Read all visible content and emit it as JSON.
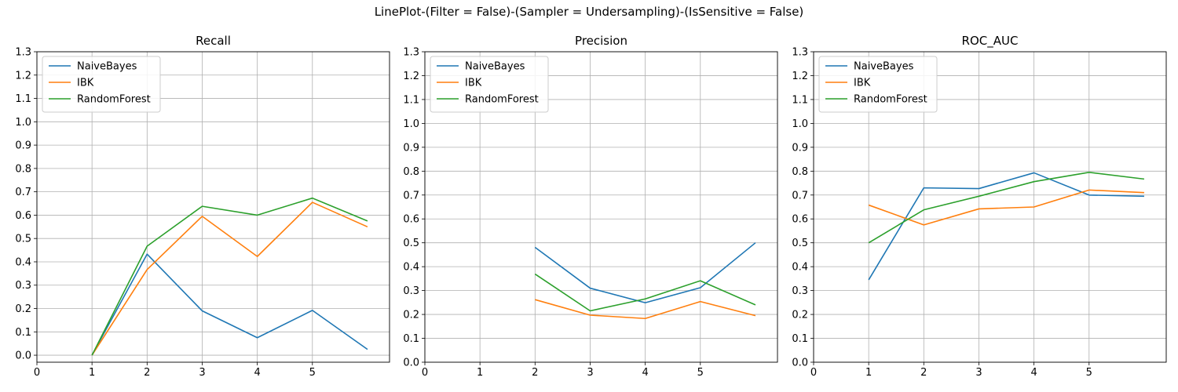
{
  "suptitle": "LinePlot-(Filter = False)-(Sampler = Undersampling)-(IsSensitive = False)",
  "colors": {
    "NaiveBayes": "#1f77b4",
    "IBK": "#ff7f0e",
    "RandomForest": "#2ca02c",
    "grid": "#b0b0b0"
  },
  "chart_data": [
    {
      "type": "line",
      "title": "Recall",
      "xlim": [
        0,
        6.4
      ],
      "ylim": [
        -0.03,
        1.3
      ],
      "xticks": [
        0,
        1,
        2,
        3,
        4,
        5
      ],
      "yticks": [
        0.0,
        0.1,
        0.2,
        0.3,
        0.4,
        0.5,
        0.6,
        0.7,
        0.8,
        0.9,
        1.0,
        1.1,
        1.2,
        1.3
      ],
      "grid": true,
      "legend": "upper-left",
      "x": [
        1,
        2,
        3,
        4,
        5,
        6
      ],
      "series": [
        {
          "name": "NaiveBayes",
          "values": [
            0.0,
            0.433,
            0.19,
            0.075,
            0.192,
            0.025
          ]
        },
        {
          "name": "IBK",
          "values": [
            0.0,
            0.367,
            0.595,
            0.423,
            0.655,
            0.55
          ]
        },
        {
          "name": "RandomForest",
          "values": [
            0.0,
            0.467,
            0.638,
            0.6,
            0.673,
            0.575
          ]
        }
      ]
    },
    {
      "type": "line",
      "title": "Precision",
      "xlim": [
        0,
        6.4
      ],
      "ylim": [
        0.0,
        1.3
      ],
      "xticks": [
        0,
        1,
        2,
        3,
        4,
        5
      ],
      "yticks": [
        0.0,
        0.1,
        0.2,
        0.3,
        0.4,
        0.5,
        0.6,
        0.7,
        0.8,
        0.9,
        1.0,
        1.1,
        1.2,
        1.3
      ],
      "grid": true,
      "legend": "upper-left",
      "x": [
        2,
        3,
        4,
        5,
        6
      ],
      "series": [
        {
          "name": "NaiveBayes",
          "values": [
            0.481,
            0.31,
            0.249,
            0.312,
            0.5
          ]
        },
        {
          "name": "IBK",
          "values": [
            0.262,
            0.197,
            0.183,
            0.254,
            0.195
          ]
        },
        {
          "name": "RandomForest",
          "values": [
            0.369,
            0.215,
            0.265,
            0.341,
            0.24
          ]
        }
      ]
    },
    {
      "type": "line",
      "title": "ROC_AUC",
      "xlim": [
        0,
        6.4
      ],
      "ylim": [
        0.0,
        1.3
      ],
      "xticks": [
        0,
        1,
        2,
        3,
        4,
        5
      ],
      "yticks": [
        0.0,
        0.1,
        0.2,
        0.3,
        0.4,
        0.5,
        0.6,
        0.7,
        0.8,
        0.9,
        1.0,
        1.1,
        1.2,
        1.3
      ],
      "grid": true,
      "legend": "upper-left",
      "x": [
        1,
        2,
        3,
        4,
        5,
        6
      ],
      "series": [
        {
          "name": "NaiveBayes",
          "values": [
            0.345,
            0.73,
            0.727,
            0.793,
            0.7,
            0.695
          ]
        },
        {
          "name": "IBK",
          "values": [
            0.658,
            0.575,
            0.642,
            0.65,
            0.721,
            0.71
          ]
        },
        {
          "name": "RandomForest",
          "values": [
            0.5,
            0.638,
            0.695,
            0.756,
            0.795,
            0.767
          ]
        }
      ]
    }
  ]
}
